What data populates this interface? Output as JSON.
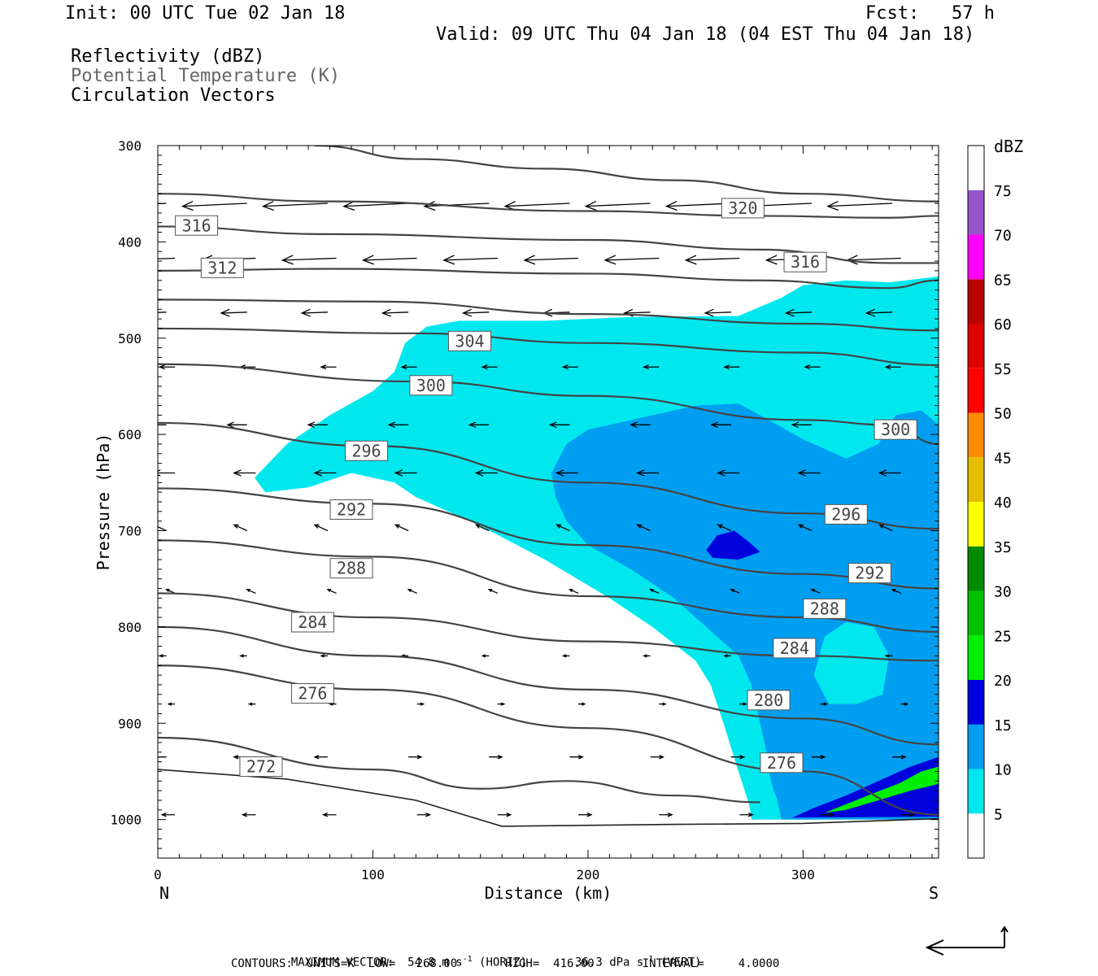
{
  "header": {
    "init": "Init: 00 UTC Tue 02 Jan 18",
    "fcst": "Fcst:   57 h",
    "valid": "Valid: 09 UTC Thu 04 Jan 18 (04 EST Thu 04 Jan 18)",
    "fields": [
      "Reflectivity (dBZ)",
      "Potential Temperature (K)",
      "Circulation Vectors"
    ]
  },
  "colors": {
    "contour": "#444444",
    "field_2_text": "#666666",
    "refl_5": "#00e8ee",
    "refl_10": "#009ef0",
    "refl_15": "#0000dd",
    "refl_20": "#00ee00"
  },
  "chart_data": {
    "type": "cross-section contour",
    "xlabel": "Distance (km)",
    "ylabel": "Pressure (hPa)",
    "xlim": [
      0,
      363
    ],
    "ylim": [
      1040,
      300
    ],
    "x_ticks": [
      "0",
      "100",
      "200",
      "300"
    ],
    "y_ticks": [
      "300",
      "400",
      "500",
      "600",
      "700",
      "800",
      "900",
      "1000"
    ],
    "x_end_labels": {
      "left": "N",
      "right": "S"
    },
    "colorbar": {
      "title": "dBZ",
      "levels": [
        "5",
        "10",
        "15",
        "20",
        "25",
        "30",
        "35",
        "40",
        "45",
        "50",
        "55",
        "60",
        "65",
        "70",
        "75"
      ],
      "colors": [
        "#ffffff",
        "#00e8ee",
        "#009ef0",
        "#0000dd",
        "#00ee00",
        "#00c000",
        "#008a00",
        "#ffff00",
        "#e6c000",
        "#ff8c00",
        "#ff0000",
        "#dd0000",
        "#bb0000",
        "#ff00ff",
        "#9955cc"
      ]
    },
    "theta_labels": [
      {
        "text": "320",
        "x": 272,
        "p": 365
      },
      {
        "text": "316",
        "x": 18,
        "p": 383
      },
      {
        "text": "316",
        "x": 301,
        "p": 421
      },
      {
        "text": "312",
        "x": 30,
        "p": 427
      },
      {
        "text": "304",
        "x": 145,
        "p": 503
      },
      {
        "text": "300",
        "x": 127,
        "p": 549
      },
      {
        "text": "300",
        "x": 343,
        "p": 595
      },
      {
        "text": "296",
        "x": 97,
        "p": 617
      },
      {
        "text": "296",
        "x": 320,
        "p": 683
      },
      {
        "text": "292",
        "x": 90,
        "p": 678
      },
      {
        "text": "292",
        "x": 331,
        "p": 744
      },
      {
        "text": "288",
        "x": 90,
        "p": 739
      },
      {
        "text": "288",
        "x": 310,
        "p": 781
      },
      {
        "text": "284",
        "x": 72,
        "p": 795
      },
      {
        "text": "284",
        "x": 296,
        "p": 822
      },
      {
        "text": "280",
        "x": 284,
        "p": 876
      },
      {
        "text": "276",
        "x": 72,
        "p": 869
      },
      {
        "text": "276",
        "x": 290,
        "p": 941
      },
      {
        "text": "272",
        "x": 48,
        "p": 945
      }
    ],
    "theta_lines": [
      [
        [
          73,
          300
        ],
        [
          120,
          314
        ],
        [
          180,
          324
        ],
        [
          240,
          336
        ],
        [
          300,
          350
        ],
        [
          363,
          358
        ]
      ],
      [
        [
          0,
          350
        ],
        [
          80,
          358
        ],
        [
          200,
          368
        ],
        [
          280,
          373
        ],
        [
          340,
          375
        ],
        [
          363,
          373
        ]
      ],
      [
        [
          0,
          384
        ],
        [
          80,
          392
        ],
        [
          200,
          398
        ],
        [
          280,
          408
        ],
        [
          340,
          422
        ],
        [
          363,
          422
        ]
      ],
      [
        [
          0,
          430
        ],
        [
          80,
          428
        ],
        [
          200,
          433
        ],
        [
          280,
          440
        ],
        [
          340,
          448
        ],
        [
          363,
          440
        ]
      ],
      [
        [
          0,
          460
        ],
        [
          100,
          462
        ],
        [
          200,
          475
        ],
        [
          300,
          485
        ],
        [
          363,
          492
        ]
      ],
      [
        [
          0,
          490
        ],
        [
          120,
          495
        ],
        [
          200,
          505
        ],
        [
          300,
          515
        ],
        [
          363,
          528
        ]
      ],
      [
        [
          0,
          527
        ],
        [
          120,
          545
        ],
        [
          200,
          560
        ],
        [
          300,
          585
        ],
        [
          340,
          590
        ],
        [
          363,
          610
        ]
      ],
      [
        [
          0,
          588
        ],
        [
          100,
          612
        ],
        [
          200,
          650
        ],
        [
          300,
          682
        ],
        [
          363,
          698
        ]
      ],
      [
        [
          0,
          656
        ],
        [
          100,
          672
        ],
        [
          200,
          715
        ],
        [
          300,
          745
        ],
        [
          363,
          760
        ]
      ],
      [
        [
          0,
          710
        ],
        [
          100,
          727
        ],
        [
          200,
          768
        ],
        [
          300,
          790
        ],
        [
          363,
          805
        ]
      ],
      [
        [
          0,
          765
        ],
        [
          100,
          790
        ],
        [
          200,
          815
        ],
        [
          300,
          830
        ],
        [
          363,
          835
        ]
      ],
      [
        [
          0,
          800
        ],
        [
          100,
          830
        ],
        [
          200,
          865
        ],
        [
          300,
          895
        ],
        [
          363,
          922
        ]
      ],
      [
        [
          0,
          840
        ],
        [
          100,
          865
        ],
        [
          200,
          905
        ],
        [
          300,
          950
        ],
        [
          363,
          995
        ]
      ],
      [
        [
          0,
          915
        ],
        [
          100,
          948
        ],
        [
          150,
          968
        ],
        [
          190,
          960
        ],
        [
          240,
          975
        ],
        [
          280,
          982
        ]
      ]
    ],
    "vectors_max_label": "MAXIMUM VECTOR:  54.8 m s^-1 (HORIZ)       36.3 dPa s^-1 (VERT)",
    "contours_label": "CONTOURS:  UNITS=K  LOW=   268.00       HIGH=  416.00       INTERVAL=     4.0000"
  },
  "footer": {
    "max_vector_prefix": "MAXIMUM VECTOR:  54.8 m s",
    "max_vector_horiz": "-1",
    "max_vector_mid": " (HORIZ)       36.3 dPa s",
    "max_vector_vert": "-1",
    "max_vector_suffix": " (VERT)",
    "contours": "CONTOURS:  UNITS=K  LOW=   268.00       HIGH=  416.00       INTERVAL=     4.0000"
  }
}
